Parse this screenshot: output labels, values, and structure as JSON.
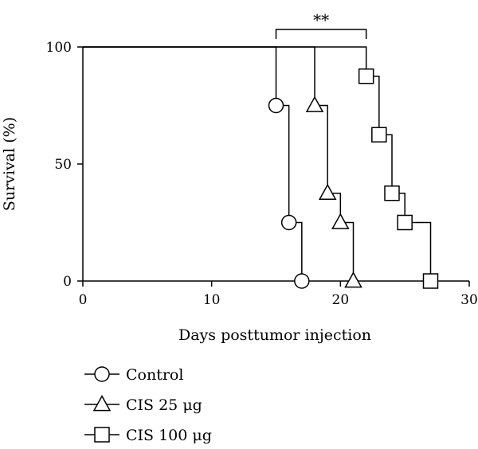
{
  "chart_data": {
    "type": "line",
    "title": "",
    "xlabel": "Days posttumor injection",
    "ylabel": "Survival (%)",
    "xlim": [
      0,
      30
    ],
    "ylim": [
      0,
      100
    ],
    "xticks": [
      0,
      10,
      20,
      30
    ],
    "yticks": [
      0,
      50,
      100
    ],
    "x_tick_labels": [
      "0",
      "10",
      "20",
      "30"
    ],
    "y_tick_labels": [
      "0",
      "50",
      "100"
    ],
    "grid": false,
    "legend_position": "bottom-left",
    "significance": {
      "label": "**",
      "x_from": 15,
      "x_to": 22
    },
    "series": [
      {
        "name": "Control",
        "marker": "circle",
        "steps": [
          [
            0,
            100
          ],
          [
            15,
            75
          ],
          [
            16,
            25
          ],
          [
            17,
            0
          ]
        ],
        "markers": [
          [
            15,
            75
          ],
          [
            16,
            25
          ],
          [
            17,
            0
          ]
        ]
      },
      {
        "name": "CIS 25 μg",
        "marker": "triangle",
        "steps": [
          [
            0,
            100
          ],
          [
            18,
            75
          ],
          [
            19,
            37.5
          ],
          [
            20,
            25
          ],
          [
            21,
            0
          ]
        ],
        "markers": [
          [
            18,
            75
          ],
          [
            19,
            37.5
          ],
          [
            20,
            25
          ],
          [
            21,
            0
          ]
        ]
      },
      {
        "name": "CIS 100 μg",
        "marker": "square",
        "steps": [
          [
            0,
            100
          ],
          [
            22,
            87.5
          ],
          [
            23,
            62.5
          ],
          [
            24,
            37.5
          ],
          [
            25,
            25
          ],
          [
            27,
            0
          ]
        ],
        "markers": [
          [
            22,
            87.5
          ],
          [
            23,
            62.5
          ],
          [
            24,
            37.5
          ],
          [
            25,
            25
          ],
          [
            27,
            0
          ]
        ]
      }
    ]
  }
}
